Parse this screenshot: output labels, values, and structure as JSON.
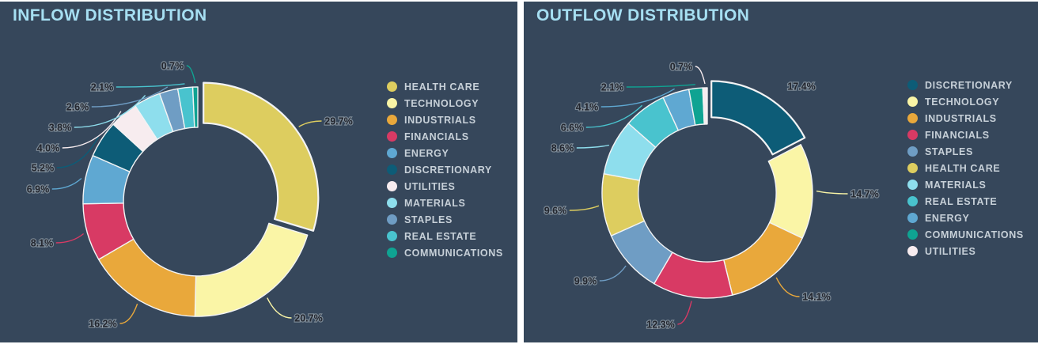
{
  "theme": {
    "page_bg": "#ffffff",
    "panel_bg": "#36475b",
    "title_color": "#a6dff2",
    "legend_text_color": "#c7d0d8",
    "pct_label_color": "#23262e",
    "pct_label_halo": "rgba(205,212,218,0.45)",
    "slice_border_color": "#f2f3f4"
  },
  "chart_data": [
    {
      "type": "donut",
      "title": "INFLOW DISTRIBUTION",
      "unit": "%",
      "legend_position": "right",
      "exploded_slice": "HEALTH CARE",
      "slices": [
        {
          "label": "HEALTH CARE",
          "value": 29.7,
          "display": "29.7%",
          "color": "#ddcd5f"
        },
        {
          "label": "TECHNOLOGY",
          "value": 20.7,
          "display": "20.7%",
          "color": "#faf5a6"
        },
        {
          "label": "INDUSTRIALS",
          "value": 16.2,
          "display": "16.2%",
          "color": "#e9a83b"
        },
        {
          "label": "FINANCIALS",
          "value": 8.1,
          "display": "8.1%",
          "color": "#d83a64"
        },
        {
          "label": "ENERGY",
          "value": 6.9,
          "display": "6.9%",
          "color": "#5fa8d2"
        },
        {
          "label": "DISCRETIONARY",
          "value": 5.2,
          "display": "5.2%",
          "color": "#0d5c77"
        },
        {
          "label": "UTILITIES",
          "value": 4.0,
          "display": "4.0%",
          "color": "#f7ecef"
        },
        {
          "label": "MATERIALS",
          "value": 3.8,
          "display": "3.8%",
          "color": "#8edeed"
        },
        {
          "label": "STAPLES",
          "value": 2.6,
          "display": "2.6%",
          "color": "#6f9dc4"
        },
        {
          "label": "REAL ESTATE",
          "value": 2.1,
          "display": "2.1%",
          "color": "#49c3ce"
        },
        {
          "label": "COMMUNICATIONS",
          "value": 0.7,
          "display": "0.7%",
          "color": "#0fa392"
        }
      ]
    },
    {
      "type": "donut",
      "title": "OUTFLOW DISTRIBUTION",
      "unit": "%",
      "legend_position": "right",
      "exploded_slice": "DISCRETIONARY",
      "slices": [
        {
          "label": "DISCRETIONARY",
          "value": 17.4,
          "display": "17.4%",
          "color": "#0d5c77"
        },
        {
          "label": "TECHNOLOGY",
          "value": 14.7,
          "display": "14.7%",
          "color": "#faf5a6"
        },
        {
          "label": "INDUSTRIALS",
          "value": 14.1,
          "display": "14.1%",
          "color": "#e9a83b"
        },
        {
          "label": "FINANCIALS",
          "value": 12.3,
          "display": "12.3%",
          "color": "#d83a64"
        },
        {
          "label": "STAPLES",
          "value": 9.9,
          "display": "9.9%",
          "color": "#6f9dc4"
        },
        {
          "label": "HEALTH CARE",
          "value": 9.6,
          "display": "9.6%",
          "color": "#ddcd5f"
        },
        {
          "label": "MATERIALS",
          "value": 8.6,
          "display": "8.6%",
          "color": "#8edeed"
        },
        {
          "label": "REAL ESTATE",
          "value": 6.6,
          "display": "6.6%",
          "color": "#49c3ce"
        },
        {
          "label": "ENERGY",
          "value": 4.1,
          "display": "4.1%",
          "color": "#5fa8d2"
        },
        {
          "label": "COMMUNICATIONS",
          "value": 2.1,
          "display": "2.1%",
          "color": "#0fa392"
        },
        {
          "label": "UTILITIES",
          "value": 0.7,
          "display": "0.7%",
          "color": "#f7ecef"
        }
      ]
    }
  ]
}
